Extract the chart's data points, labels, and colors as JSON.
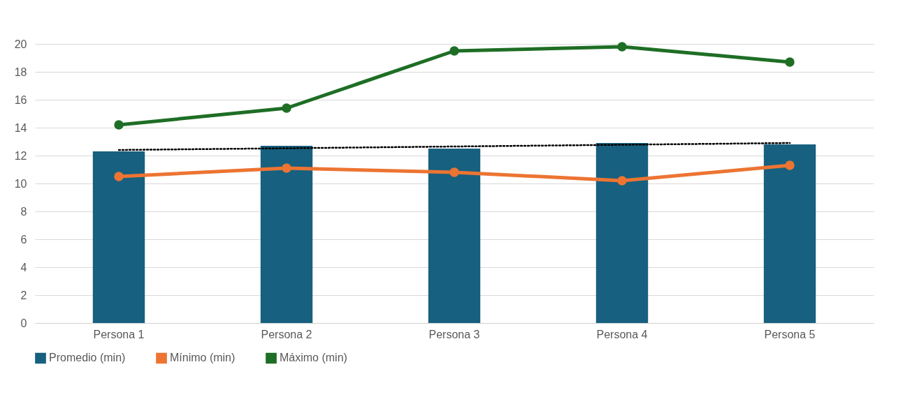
{
  "chart_data": {
    "type": "bar",
    "categories": [
      "Persona 1",
      "Persona 2",
      "Persona 3",
      "Persona 4",
      "Persona 5"
    ],
    "series": [
      {
        "name": "Promedio (min)",
        "color": "#17607f",
        "values": [
          12.3,
          12.7,
          12.5,
          12.9,
          12.8
        ]
      },
      {
        "name": "Mínimo (min)",
        "type": "line",
        "color": "#ed7432",
        "marker": "circle",
        "values": [
          10.5,
          11.1,
          10.8,
          10.2,
          11.3
        ]
      },
      {
        "name": "Máximo (min)",
        "type": "line",
        "color": "#1e6e25",
        "marker": "circle",
        "values": [
          14.2,
          15.4,
          19.5,
          19.8,
          18.7
        ]
      },
      {
        "type": "line",
        "color": "#000000",
        "line_style": "dotted",
        "x": [
          "Persona 1",
          "Persona 5"
        ],
        "values": [
          12.4,
          12.9
        ]
      }
    ],
    "ylim": [
      0,
      20
    ],
    "yticks": [
      0,
      2,
      4,
      6,
      8,
      10,
      12,
      14,
      16,
      18,
      20
    ],
    "grid": "y",
    "legend": "bottom"
  }
}
